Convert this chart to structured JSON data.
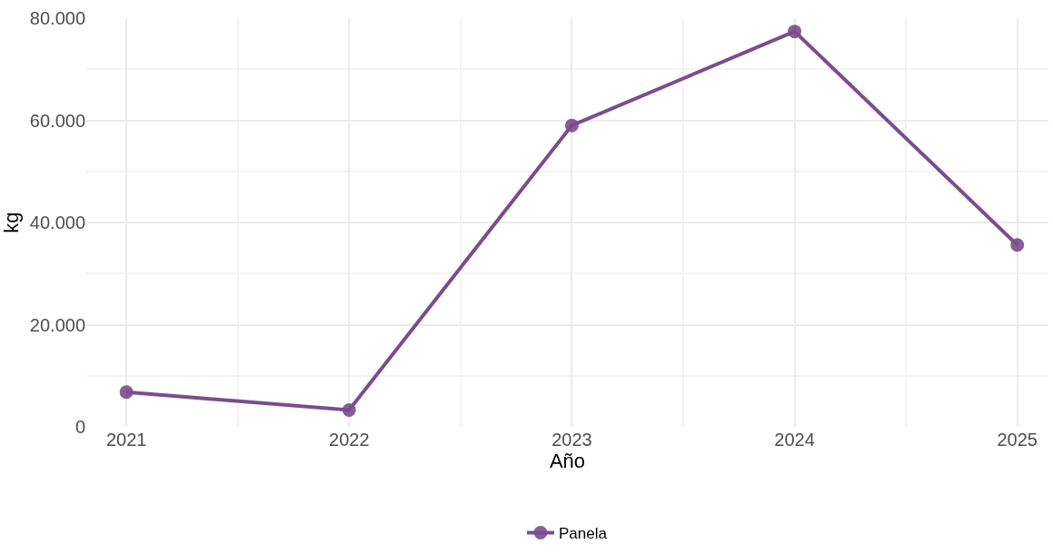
{
  "chart_data": {
    "type": "line",
    "xlabel": "Año",
    "ylabel": "kg",
    "x": [
      2021,
      2022,
      2023,
      2024,
      2025
    ],
    "series": [
      {
        "name": "Panela",
        "color": "#6d3a80",
        "values": [
          6800,
          3300,
          59000,
          77400,
          35600
        ]
      }
    ],
    "xlim": [
      2020.82,
      2025.14
    ],
    "xticks": [
      2021,
      2022,
      2023,
      2024,
      2025
    ],
    "ylim": [
      0,
      80000
    ],
    "yticks": [
      0,
      {
        "value": 20000,
        "label": "20.000"
      },
      {
        "value": 40000,
        "label": "40.000"
      },
      {
        "value": 60000,
        "label": "60.000"
      },
      {
        "value": 80000,
        "label": "80.000"
      }
    ],
    "grid": true,
    "legend": "bottom",
    "marker": "circle",
    "line_style": "solid"
  }
}
